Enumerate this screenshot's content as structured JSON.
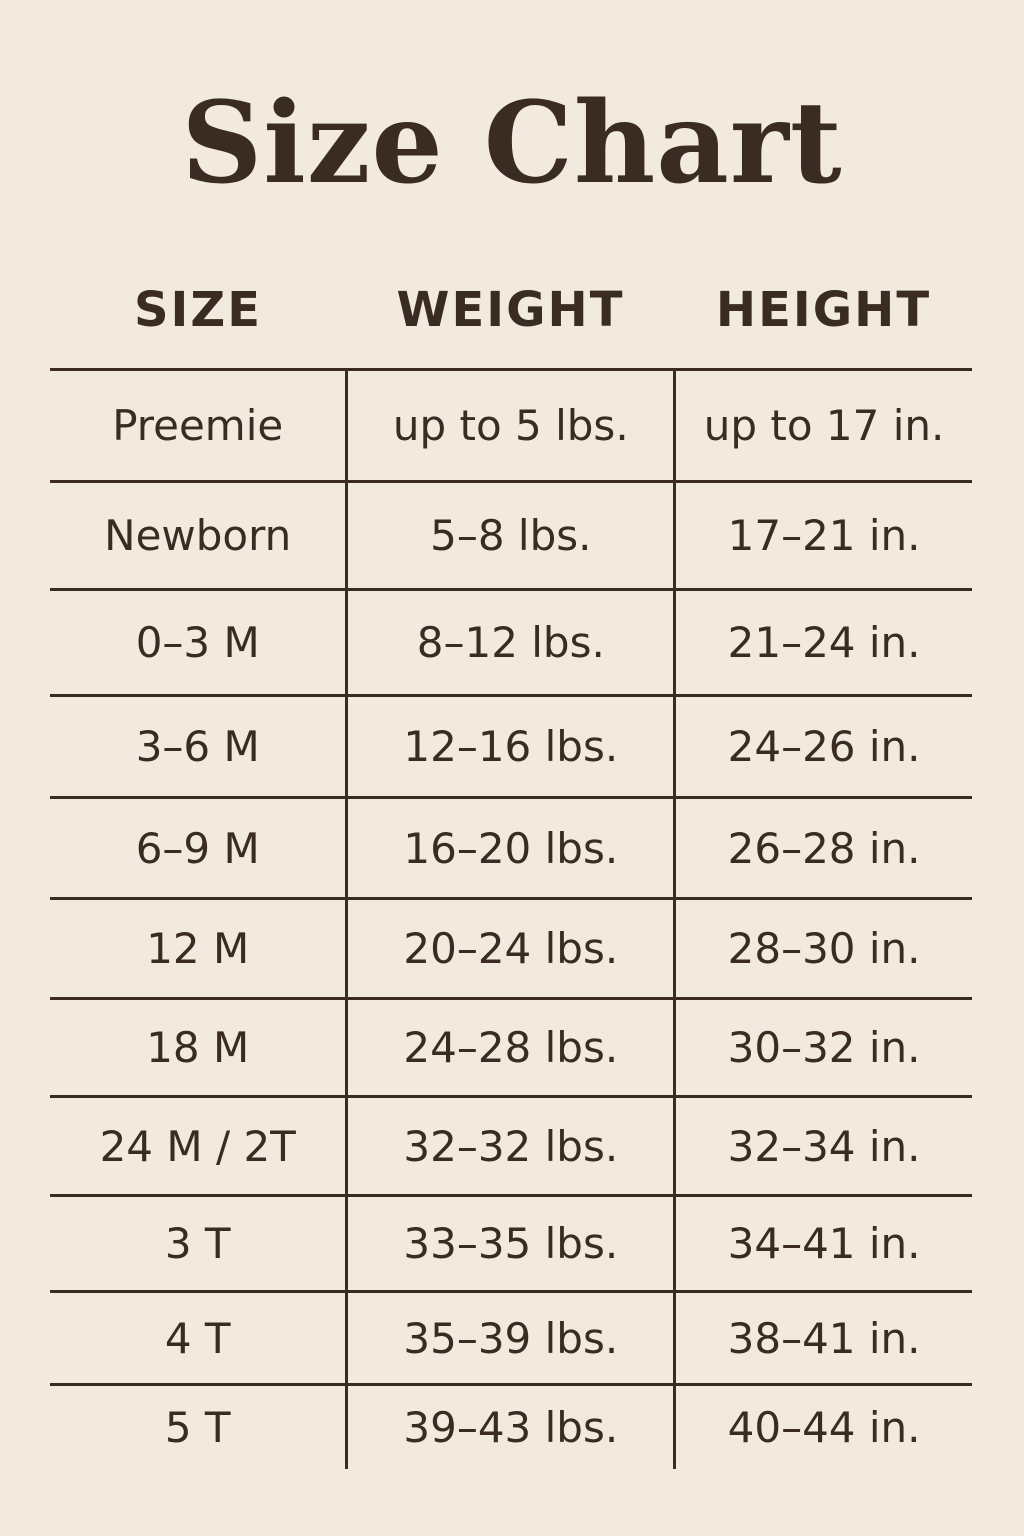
{
  "title": "Size Chart",
  "headers": [
    "SIZE",
    "WEIGHT",
    "HEIGHT"
  ],
  "rows": [
    [
      "Preemie",
      "up to 5 lbs.",
      "up to 17 in."
    ],
    [
      "Newborn",
      "5–8 lbs.",
      "17–21 in."
    ],
    [
      "0–3 M",
      "8–12 lbs.",
      "21–24 in."
    ],
    [
      "3–6 M",
      "12–16 lbs.",
      "24–26 in."
    ],
    [
      "6–9 M",
      "16–20 lbs.",
      "26–28 in."
    ],
    [
      "12 M",
      "20–24 lbs.",
      "28–30 in."
    ],
    [
      "18 M",
      "24–28 lbs.",
      "30–32 in."
    ],
    [
      "24 M / 2T",
      "32–32 lbs.",
      "32–34 in."
    ],
    [
      "3 T",
      "33–35 lbs.",
      "34–41 in."
    ],
    [
      "4 T",
      "35–39 lbs.",
      "38–41 in."
    ],
    [
      "5 T",
      "39–43 lbs.",
      "40–44 in."
    ]
  ],
  "colors": {
    "background": "#f2eadf",
    "text": "#3a2c22"
  }
}
